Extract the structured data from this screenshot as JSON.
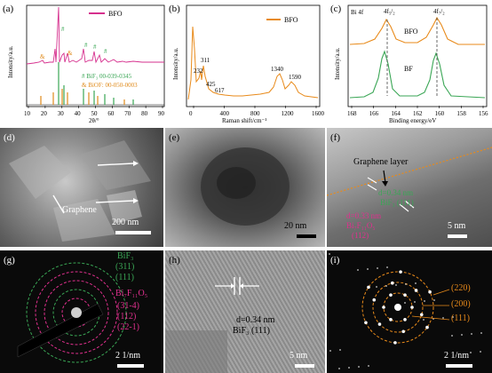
{
  "panels": {
    "a": {
      "label": "(a)",
      "legend_top": "BFO",
      "ylabel": "Intensity/a.u.",
      "xlabel": "2θ/°",
      "xticks": [
        "10",
        "20",
        "30",
        "40",
        "50",
        "60",
        "70",
        "80",
        "90"
      ],
      "ref1": "# BiF₃ 00-039-0345",
      "ref2": "& BiOF: 00-050-0003",
      "marker_hash": "#",
      "marker_amp": "&",
      "colors": {
        "bfo": "#d6308e",
        "bif3": "#3aa655",
        "biof": "#e08a1a"
      }
    },
    "b": {
      "label": "(b)",
      "legend": "BFO",
      "ylabel": "Intensity/a.u.",
      "xlabel": "Raman shift/cm⁻¹",
      "xticks": [
        "0",
        "400",
        "800",
        "1200",
        "1600"
      ],
      "peaks": [
        "311",
        "232",
        "425",
        "617",
        "1340",
        "1590"
      ],
      "color": "#e88a1a"
    },
    "c": {
      "label": "(c)",
      "corner": "Bi 4f",
      "ylabel": "Intensity/a.u.",
      "xlabel": "Binding energy/eV",
      "xticks": [
        "168",
        "166",
        "164",
        "162",
        "160",
        "158",
        "156"
      ],
      "peak_left": "4f₅/₂",
      "peak_right": "4f₇/₂",
      "series_top": "BFO",
      "series_bottom": "BF",
      "colors": {
        "top": "#e88a1a",
        "bottom": "#3aa655"
      }
    },
    "d": {
      "label": "(d)",
      "annotation": "Graphene",
      "scale": "200 nm"
    },
    "e": {
      "label": "(e)",
      "scale": "20 nm"
    },
    "f": {
      "label": "(f)",
      "annotation": "Graphene layer",
      "d1": "d=0.34 nm",
      "d1_phase": "BiF₃ (111)",
      "d2": "d=0.33 nm",
      "d2_phase": "Bi₇F₁₁O₅",
      "d2_plane": "(112)",
      "scale": "5 nm"
    },
    "g": {
      "label": "(g)",
      "bif3_title": "BiF₃",
      "bif3_rings": [
        "(311)",
        "(111)"
      ],
      "b7_title": "Bi₇F₁₁O₅",
      "b7_rings": [
        "(31-4)",
        "(112)",
        "(22-1)"
      ],
      "scale": "2 1/nm"
    },
    "h": {
      "label": "(h)",
      "d": "d=0.34 nm",
      "phase": "BiF₃ (111)",
      "scale": "5 nm"
    },
    "i": {
      "label": "(i)",
      "rings": [
        "(220)",
        "(200)",
        "(111)"
      ],
      "scale": "2 1/nm"
    }
  }
}
